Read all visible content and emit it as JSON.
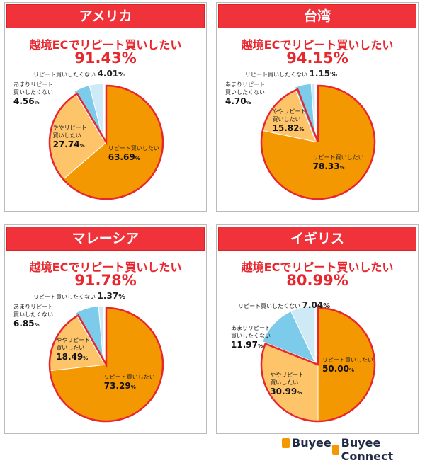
{
  "colors": {
    "header": "#f0323a",
    "repeat": "#f39800",
    "somewhat": "#fdc46a",
    "rather_not": "#7ccbeb",
    "not": "#cfeaf7",
    "outline": "#e8262e"
  },
  "chart_data": [
    {
      "type": "pie",
      "title": "アメリカ",
      "subtitle": "越境ECでリピート買いしたい",
      "total": "91.43%",
      "categories": [
        "リピート買いしたい",
        "ややリピート買いしたい",
        "あまりリピート買いしたくない",
        "リピート買いしたくない"
      ],
      "values": [
        63.69,
        27.74,
        4.56,
        4.01
      ]
    },
    {
      "type": "pie",
      "title": "台湾",
      "subtitle": "越境ECでリピート買いしたい",
      "total": "94.15%",
      "categories": [
        "リピート買いしたい",
        "ややリピート買いしたい",
        "あまりリピート買いしたくない",
        "リピート買いしたくない"
      ],
      "values": [
        78.33,
        15.82,
        4.7,
        1.15
      ]
    },
    {
      "type": "pie",
      "title": "マレーシア",
      "subtitle": "越境ECでリピート買いしたい",
      "total": "91.78%",
      "categories": [
        "リピート買いしたい",
        "ややリピート買いしたい",
        "あまりリピート買いしたくない",
        "リピート買いしたくない"
      ],
      "values": [
        73.29,
        18.49,
        6.85,
        1.37
      ]
    },
    {
      "type": "pie",
      "title": "イギリス",
      "subtitle": "越境ECでリピート買いしたい",
      "total": "80.99%",
      "categories": [
        "リピート買いしたい",
        "ややリピート買いしたい",
        "あまりリピート買いしたくない",
        "リピート買いしたくない"
      ],
      "values": [
        50.0,
        30.99,
        11.97,
        7.04
      ]
    }
  ],
  "labels": {
    "l0": "リピート買いしたい",
    "l1a": "ややリピート",
    "l1b": "買いしたい",
    "l2a": "あまりリピート",
    "l2b": "買いしたくない",
    "l3": "リピート買いしたくない",
    "unit": "%"
  },
  "logos": [
    "Buyee",
    "Buyee Connect"
  ]
}
